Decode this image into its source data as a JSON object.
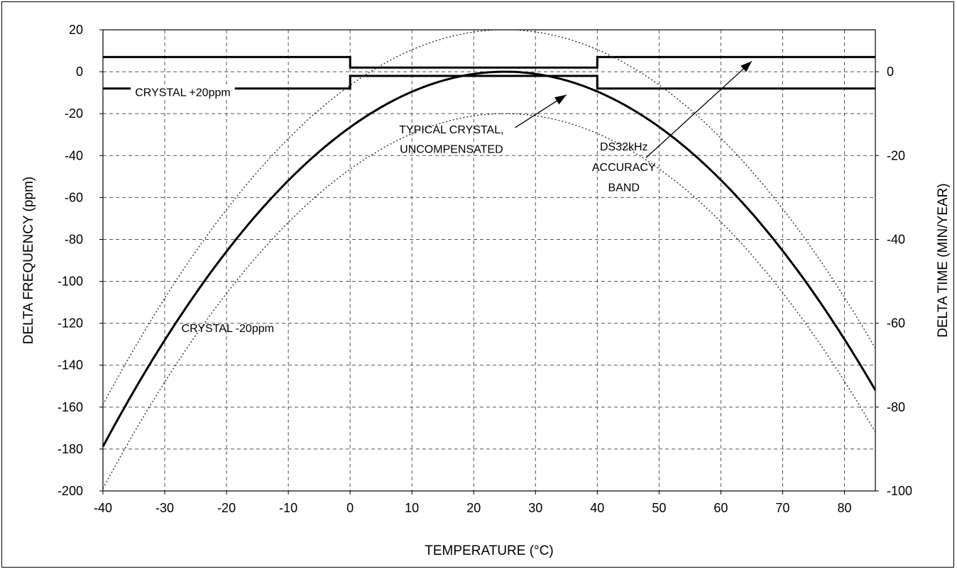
{
  "chart_data": {
    "type": "line",
    "title": "",
    "xlabel": "TEMPERATURE (°C)",
    "ylabel": "DELTA FREQUENCY (ppm)",
    "y2label": "DELTA TIME (MIN/YEAR)",
    "xlim": [
      -40,
      85
    ],
    "ylim": [
      -200,
      20
    ],
    "y2lim": [
      -100,
      10
    ],
    "x_ticks": [
      "-40",
      "-30",
      "-20",
      "-10",
      "0",
      "10",
      "20",
      "30",
      "40",
      "50",
      "60",
      "70",
      "80"
    ],
    "y_ticks": [
      "20",
      "0",
      "-20",
      "-40",
      "-60",
      "-80",
      "-100",
      "-120",
      "-140",
      "-160",
      "-180",
      "-200"
    ],
    "y2_ticks": [
      "0",
      "-20",
      "-40",
      "-60",
      "-80",
      "-100"
    ],
    "grid": true,
    "series": [
      {
        "name": "TYPICAL CRYSTAL, UNCOMPENSATED",
        "style": "solid",
        "x": [
          -40,
          -30,
          -20,
          -10,
          0,
          10,
          20,
          25,
          30,
          40,
          50,
          60,
          70,
          80,
          85
        ],
        "y": [
          -178,
          -129,
          -86,
          -52,
          -26,
          -10,
          -1,
          0,
          -1,
          -8,
          -26,
          -53,
          -86,
          -128,
          -151
        ]
      },
      {
        "name": "CRYSTAL +20ppm",
        "style": "dotted",
        "x": [
          -40,
          -30,
          -20,
          -10,
          0,
          10,
          20,
          25,
          30,
          40,
          50,
          60,
          70,
          80,
          85
        ],
        "y": [
          -158,
          -109,
          -66,
          -32,
          -6,
          10,
          19,
          20,
          19,
          12,
          -6,
          -33,
          -66,
          -108,
          -131
        ]
      },
      {
        "name": "CRYSTAL -20ppm",
        "style": "dotted",
        "x": [
          -40,
          -30,
          -20,
          -10,
          0,
          10,
          20,
          25,
          30,
          40,
          50,
          60,
          70,
          80,
          85
        ],
        "y": [
          -198,
          -149,
          -106,
          -72,
          -46,
          -30,
          -21,
          -20,
          -21,
          -28,
          -46,
          -73,
          -106,
          -148,
          -171
        ]
      },
      {
        "name": "DS32kHz ACCURACY BAND",
        "style": "band",
        "upper": {
          "x": [
            -40,
            0,
            0,
            40,
            40,
            85
          ],
          "y": [
            7,
            7,
            2,
            2,
            7,
            7
          ]
        },
        "lower": {
          "x": [
            -40,
            0,
            0,
            40,
            40,
            85
          ],
          "y": [
            -8,
            -8,
            -2,
            -2,
            -8,
            -8
          ]
        }
      }
    ],
    "annotations": {
      "crystal_plus": "CRYSTAL +20ppm",
      "crystal_minus": "CRYSTAL -20ppm",
      "typical_line1": "TYPICAL CRYSTAL,",
      "typical_line2": "UNCOMPENSATED",
      "band_line1": "DS32kHz",
      "band_line2": "ACCURACY",
      "band_line3": "BAND"
    }
  }
}
